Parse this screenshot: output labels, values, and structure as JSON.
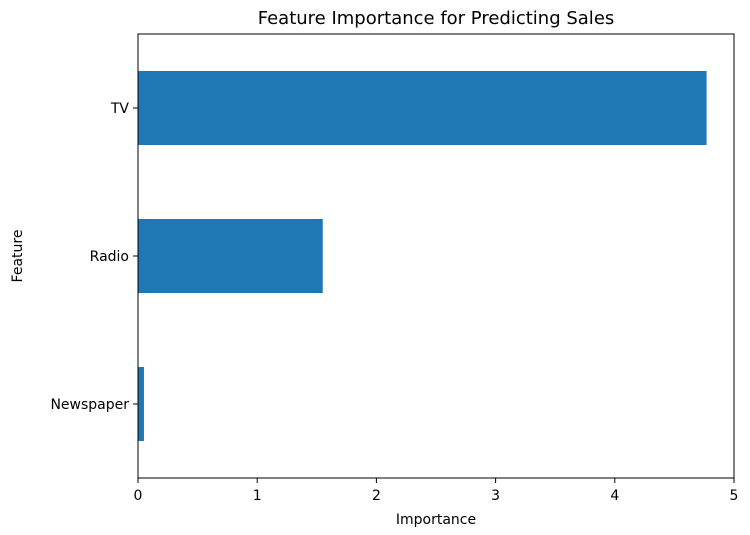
{
  "chart_data": {
    "type": "bar",
    "orientation": "horizontal",
    "title": "Feature Importance for Predicting Sales",
    "xlabel": "Importance",
    "ylabel": "Feature",
    "categories": [
      "TV",
      "Radio",
      "Newspaper"
    ],
    "values": [
      4.77,
      1.55,
      0.05
    ],
    "xlim": [
      0,
      5
    ],
    "xticks": [
      "0",
      "1",
      "2",
      "3",
      "4",
      "5"
    ],
    "grid": false,
    "bar_color": "#1f77b4"
  }
}
